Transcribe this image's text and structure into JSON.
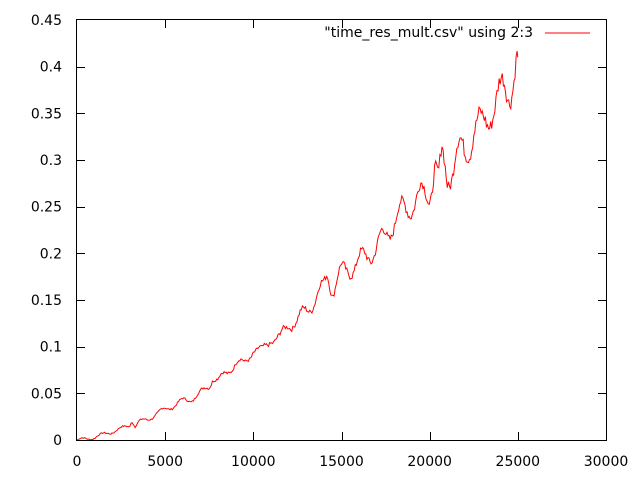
{
  "chart_data": {
    "type": "line",
    "title": "",
    "xlabel": "",
    "ylabel": "",
    "xlim": [
      0,
      30000
    ],
    "ylim": [
      0,
      0.45
    ],
    "x_ticks": [
      "0",
      "5000",
      "10000",
      "15000",
      "20000",
      "25000",
      "30000"
    ],
    "y_ticks": [
      "0",
      "0.05",
      "0.1",
      "0.15",
      "0.2",
      "0.25",
      "0.3",
      "0.35",
      "0.4",
      "0.45"
    ],
    "grid": false,
    "legend_position": "top-right",
    "series": [
      {
        "name": "\"time_res_mult.csv\" using 2:3",
        "color": "#ff0000",
        "x": [
          0,
          500,
          1000,
          1500,
          2000,
          2500,
          3000,
          3100,
          3300,
          3500,
          4000,
          4500,
          5000,
          5500,
          6000,
          6500,
          7000,
          7500,
          7700,
          8000,
          8500,
          9000,
          9500,
          10000,
          10500,
          11000,
          11500,
          12000,
          12500,
          13000,
          13500,
          14000,
          14200,
          14500,
          15000,
          15500,
          16000,
          16500,
          17000,
          17500,
          18000,
          18500,
          19000,
          19500,
          20000,
          20300,
          20500,
          20700,
          21000,
          21500,
          22000,
          22500,
          23000,
          23500,
          24000,
          24500,
          25000
        ],
        "y": [
          0.0,
          0.001,
          0.003,
          0.006,
          0.009,
          0.012,
          0.016,
          0.022,
          0.015,
          0.019,
          0.022,
          0.028,
          0.033,
          0.037,
          0.042,
          0.044,
          0.05,
          0.058,
          0.067,
          0.064,
          0.072,
          0.083,
          0.081,
          0.098,
          0.094,
          0.11,
          0.108,
          0.125,
          0.127,
          0.14,
          0.15,
          0.165,
          0.18,
          0.16,
          0.18,
          0.185,
          0.19,
          0.2,
          0.205,
          0.22,
          0.235,
          0.245,
          0.255,
          0.26,
          0.265,
          0.3,
          0.275,
          0.3,
          0.28,
          0.31,
          0.3,
          0.34,
          0.33,
          0.36,
          0.365,
          0.38,
          0.41
        ]
      }
    ]
  }
}
